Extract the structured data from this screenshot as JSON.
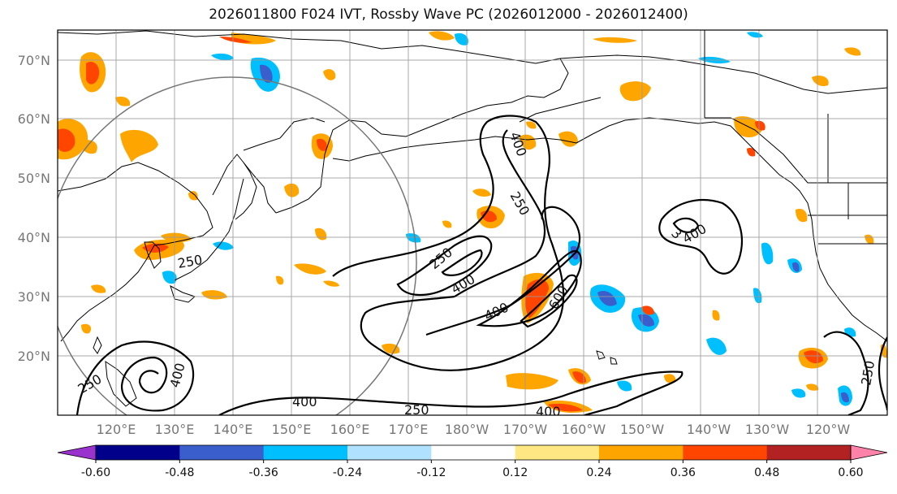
{
  "title": "2026011800 F024 IVT, Rossby Wave PC (2026012000 - 2026012400)",
  "map": {
    "projection": "PlateCarree",
    "extent": {
      "lon_min": 110,
      "lon_max": 252,
      "lat_min": 10,
      "lat_max": 75
    },
    "lat_ticks": [
      "70°N",
      "60°N",
      "50°N",
      "40°N",
      "30°N",
      "20°N"
    ],
    "lon_ticks": [
      "120°E",
      "130°E",
      "140°E",
      "150°E",
      "160°E",
      "170°E",
      "180°W",
      "170°W",
      "160°W",
      "150°W",
      "140°W",
      "130°W",
      "120°W"
    ],
    "gridlines": true,
    "ivt_contour_labels": [
      "400",
      "250",
      "250",
      "400",
      "400",
      "600",
      "3",
      "400",
      "250",
      "250",
      "400",
      "400",
      "250",
      "400",
      "250"
    ]
  },
  "colorbar": {
    "ticks": [
      "-0.60",
      "-0.48",
      "-0.36",
      "-0.24",
      "-0.12",
      "0.12",
      "0.24",
      "0.36",
      "0.48",
      "0.60"
    ],
    "colors": [
      "#9a32cd",
      "#00008b",
      "#3a5fcd",
      "#00bfff",
      "#b0e2ff",
      "#ffffff",
      "#ffe884",
      "#ffa500",
      "#ff4500",
      "#b22222",
      "#ff82ab"
    ],
    "extend": "both"
  },
  "chart_data": {
    "type": "heatmap",
    "title": "2026011800 F024 IVT, Rossby Wave PC (2026012000 - 2026012400)",
    "x_range": [
      110,
      252
    ],
    "y_range": [
      10,
      75
    ],
    "colorbar_range": [
      -0.6,
      0.6
    ]
  }
}
